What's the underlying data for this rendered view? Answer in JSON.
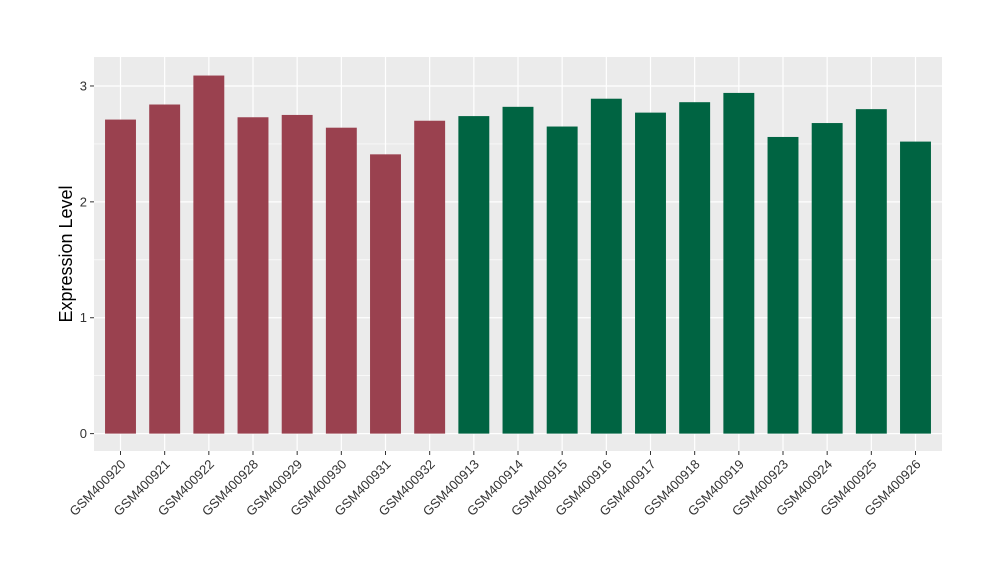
{
  "chart_data": {
    "type": "bar",
    "ylabel": "Expression Level",
    "xlabel": "",
    "ylim": [
      -0.15,
      3.25
    ],
    "yticks": [
      0,
      1,
      2,
      3
    ],
    "ytick_labels": [
      "0",
      "1",
      "2",
      "3"
    ],
    "grid": true,
    "colors": {
      "panel": "#EBEBEB",
      "grid": "#FFFFFF",
      "group_a": "#9A414F",
      "group_b": "#006442"
    },
    "categories": [
      "GSM400920",
      "GSM400921",
      "GSM400922",
      "GSM400928",
      "GSM400929",
      "GSM400930",
      "GSM400931",
      "GSM400932",
      "GSM400913",
      "GSM400914",
      "GSM400915",
      "GSM400916",
      "GSM400917",
      "GSM400918",
      "GSM400919",
      "GSM400923",
      "GSM400924",
      "GSM400925",
      "GSM400926"
    ],
    "values": [
      2.71,
      2.84,
      3.09,
      2.73,
      2.75,
      2.64,
      2.41,
      2.7,
      2.74,
      2.82,
      2.65,
      2.89,
      2.77,
      2.86,
      2.94,
      2.56,
      2.68,
      2.8,
      2.52
    ],
    "bar_groups": [
      "a",
      "a",
      "a",
      "a",
      "a",
      "a",
      "a",
      "a",
      "b",
      "b",
      "b",
      "b",
      "b",
      "b",
      "b",
      "b",
      "b",
      "b",
      "b"
    ]
  }
}
